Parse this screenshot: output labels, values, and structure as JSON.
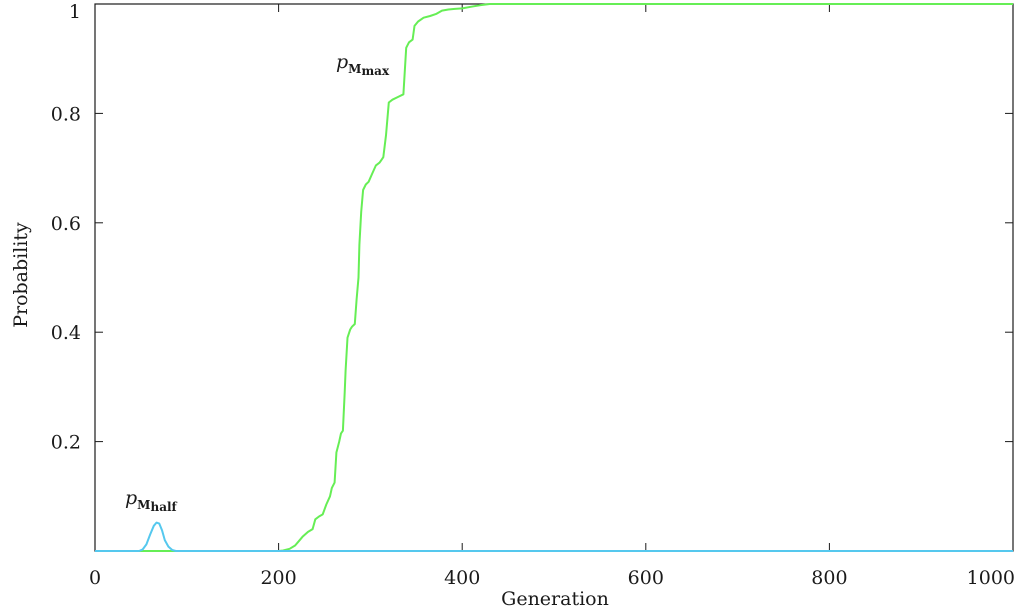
{
  "chart_data": {
    "type": "line",
    "title": "",
    "xlabel": "Generation",
    "ylabel": "Probability",
    "xlim": [
      0,
      1000
    ],
    "ylim": [
      0,
      1
    ],
    "x_ticks": [
      "0",
      "200",
      "400",
      "600",
      "800",
      "1000"
    ],
    "y_ticks": [
      "0.2",
      "0.4",
      "0.6",
      "0.8",
      "1"
    ],
    "grid": false,
    "series": [
      {
        "label": "p",
        "label_sub": "M",
        "label_subsub": "max",
        "color": "#66ee55",
        "points": [
          [
            0,
            0
          ],
          [
            200,
            0
          ],
          [
            205,
            0.001
          ],
          [
            212,
            0.004
          ],
          [
            218,
            0.01
          ],
          [
            222,
            0.018
          ],
          [
            226,
            0.026
          ],
          [
            232,
            0.035
          ],
          [
            237,
            0.04
          ],
          [
            240,
            0.058
          ],
          [
            244,
            0.063
          ],
          [
            248,
            0.067
          ],
          [
            252,
            0.085
          ],
          [
            256,
            0.1
          ],
          [
            258,
            0.115
          ],
          [
            261,
            0.125
          ],
          [
            263,
            0.18
          ],
          [
            266,
            0.2
          ],
          [
            268,
            0.215
          ],
          [
            270,
            0.22
          ],
          [
            272,
            0.29
          ],
          [
            273,
            0.33
          ],
          [
            275,
            0.39
          ],
          [
            278,
            0.405
          ],
          [
            280,
            0.41
          ],
          [
            283,
            0.415
          ],
          [
            285,
            0.46
          ],
          [
            287,
            0.5
          ],
          [
            288,
            0.56
          ],
          [
            290,
            0.62
          ],
          [
            292,
            0.66
          ],
          [
            295,
            0.67
          ],
          [
            298,
            0.675
          ],
          [
            302,
            0.69
          ],
          [
            306,
            0.705
          ],
          [
            310,
            0.71
          ],
          [
            314,
            0.72
          ],
          [
            317,
            0.76
          ],
          [
            320,
            0.82
          ],
          [
            324,
            0.825
          ],
          [
            330,
            0.83
          ],
          [
            336,
            0.835
          ],
          [
            339,
            0.92
          ],
          [
            342,
            0.93
          ],
          [
            346,
            0.935
          ],
          [
            348,
            0.96
          ],
          [
            352,
            0.968
          ],
          [
            358,
            0.975
          ],
          [
            365,
            0.978
          ],
          [
            372,
            0.982
          ],
          [
            378,
            0.988
          ],
          [
            385,
            0.99
          ],
          [
            392,
            0.991
          ],
          [
            400,
            0.992
          ],
          [
            410,
            0.995
          ],
          [
            420,
            0.998
          ],
          [
            430,
            1.0
          ],
          [
            1000,
            1.0
          ]
        ]
      },
      {
        "label": "p",
        "label_sub": "M",
        "label_subsub": "half",
        "color": "#55c8ee",
        "points": [
          [
            0,
            0
          ],
          [
            48,
            0
          ],
          [
            52,
            0.003
          ],
          [
            56,
            0.012
          ],
          [
            60,
            0.03
          ],
          [
            64,
            0.046
          ],
          [
            67,
            0.052
          ],
          [
            70,
            0.05
          ],
          [
            73,
            0.038
          ],
          [
            76,
            0.02
          ],
          [
            80,
            0.008
          ],
          [
            84,
            0.002
          ],
          [
            88,
            0
          ],
          [
            1000,
            0
          ]
        ]
      }
    ]
  }
}
